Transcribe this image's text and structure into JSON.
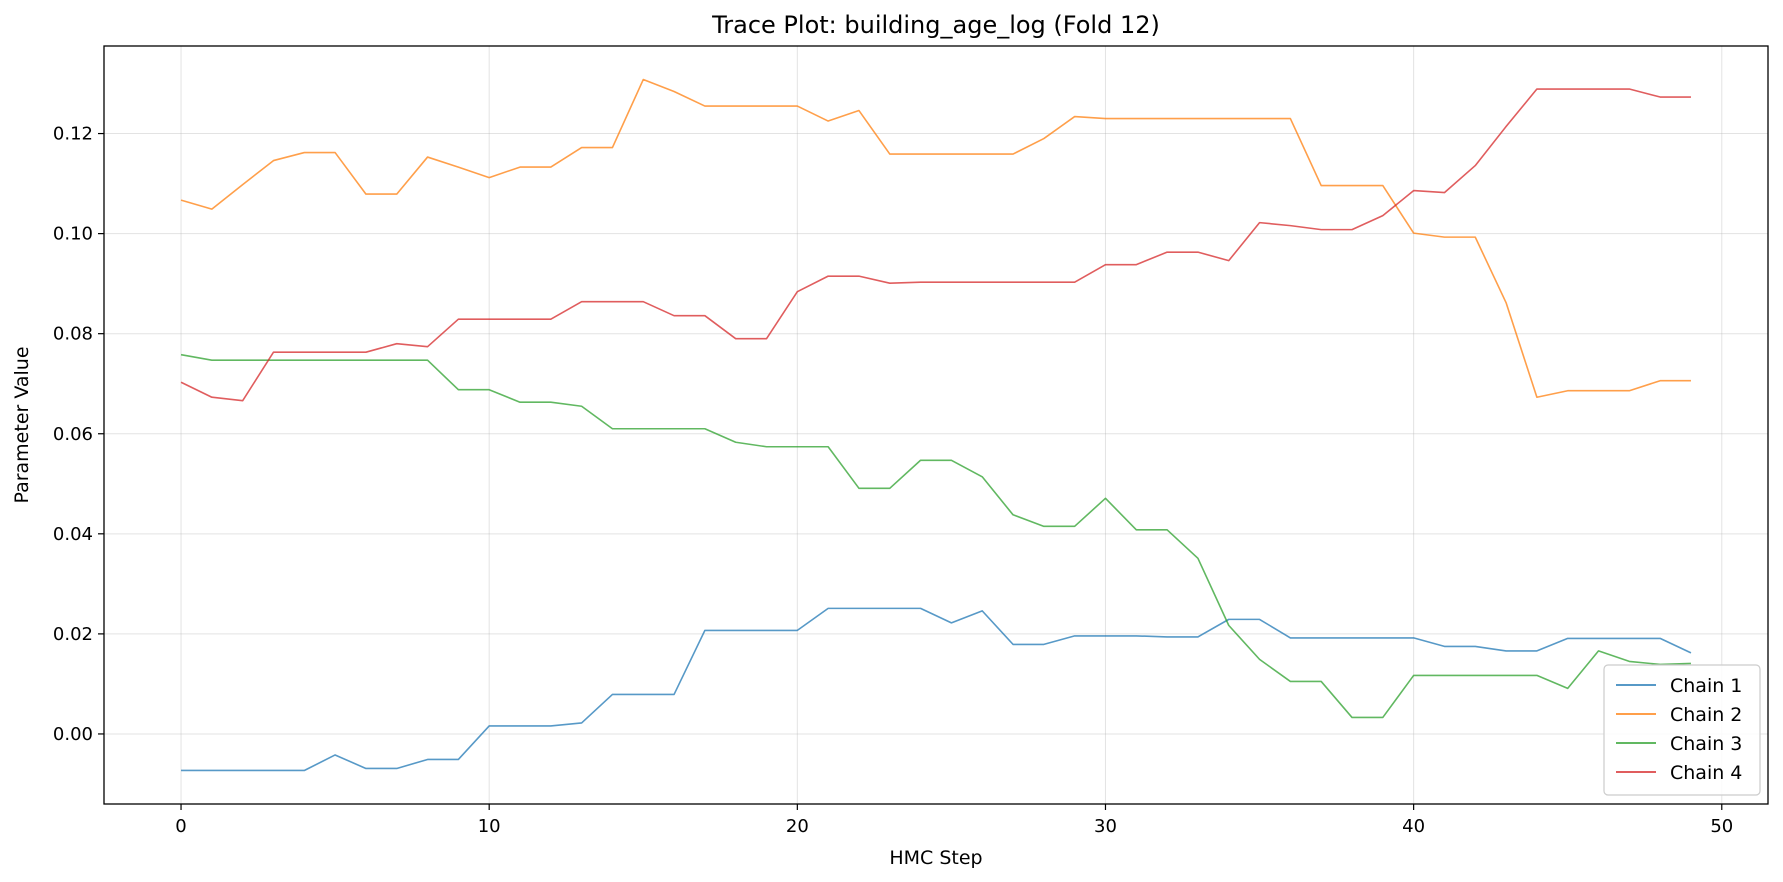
{
  "chart_data": {
    "type": "line",
    "title": "Trace Plot: building_age_log (Fold 12)",
    "xlabel": "HMC Step",
    "ylabel": "Parameter Value",
    "xlim": [
      -2.5,
      51.5
    ],
    "ylim": [
      -0.014,
      0.1375
    ],
    "xticks": [
      0,
      10,
      20,
      30,
      40,
      50
    ],
    "xtick_labels": [
      "0",
      "10",
      "20",
      "30",
      "40",
      "50"
    ],
    "yticks": [
      0.0,
      0.02,
      0.04,
      0.06,
      0.08,
      0.1,
      0.12
    ],
    "ytick_labels": [
      "0.00",
      "0.02",
      "0.04",
      "0.06",
      "0.08",
      "0.10",
      "0.12"
    ],
    "grid": true,
    "legend_position": "lower-right",
    "x": [
      0,
      1,
      2,
      3,
      4,
      5,
      6,
      7,
      8,
      9,
      10,
      11,
      12,
      13,
      14,
      15,
      16,
      17,
      18,
      19,
      20,
      21,
      22,
      23,
      24,
      25,
      26,
      27,
      28,
      29,
      30,
      31,
      32,
      33,
      34,
      35,
      36,
      37,
      38,
      39,
      40,
      41,
      42,
      43,
      44,
      45,
      46,
      47,
      48,
      49
    ],
    "series": [
      {
        "name": "Chain 1",
        "color": "#1f77b4",
        "values": [
          -0.0073,
          -0.0073,
          -0.0073,
          -0.0073,
          -0.0073,
          -0.0042,
          -0.0069,
          -0.0069,
          -0.0051,
          -0.0051,
          0.0016,
          0.0016,
          0.0016,
          0.0022,
          0.0079,
          0.0079,
          0.0079,
          0.0207,
          0.0207,
          0.0207,
          0.0207,
          0.0251,
          0.0251,
          0.0251,
          0.0251,
          0.0222,
          0.0246,
          0.0179,
          0.0179,
          0.0196,
          0.0196,
          0.0196,
          0.0194,
          0.0194,
          0.0229,
          0.0229,
          0.0192,
          0.0192,
          0.0192,
          0.0192,
          0.0192,
          0.0175,
          0.0175,
          0.0166,
          0.0166,
          0.0191,
          0.0191,
          0.0191,
          0.0191,
          0.0162
        ]
      },
      {
        "name": "Chain 2",
        "color": "#ff7f0e",
        "values": [
          0.1067,
          0.1049,
          0.1098,
          0.1146,
          0.1162,
          0.1162,
          0.1079,
          0.1079,
          0.1153,
          0.1133,
          0.1112,
          0.1133,
          0.1133,
          0.1172,
          0.1172,
          0.1308,
          0.1284,
          0.1255,
          0.1255,
          0.1255,
          0.1255,
          0.1225,
          0.1246,
          0.1159,
          0.1159,
          0.1159,
          0.1159,
          0.1159,
          0.119,
          0.1234,
          0.123,
          0.123,
          0.123,
          0.123,
          0.123,
          0.123,
          0.123,
          0.1096,
          0.1096,
          0.1096,
          0.1001,
          0.0993,
          0.0993,
          0.0862,
          0.0673,
          0.0686,
          0.0686,
          0.0686,
          0.0706,
          0.0706
        ]
      },
      {
        "name": "Chain 3",
        "color": "#2ca02c",
        "values": [
          0.0758,
          0.0747,
          0.0747,
          0.0747,
          0.0747,
          0.0747,
          0.0747,
          0.0747,
          0.0747,
          0.0688,
          0.0688,
          0.0663,
          0.0663,
          0.0655,
          0.061,
          0.061,
          0.061,
          0.061,
          0.0583,
          0.0574,
          0.0574,
          0.0574,
          0.0491,
          0.0491,
          0.0547,
          0.0547,
          0.0514,
          0.0438,
          0.0415,
          0.0415,
          0.0471,
          0.0408,
          0.0408,
          0.0351,
          0.0217,
          0.0149,
          0.0105,
          0.0105,
          0.0033,
          0.0033,
          0.0117,
          0.0117,
          0.0117,
          0.0117,
          0.0117,
          0.0091,
          0.0166,
          0.0145,
          0.0139,
          0.0141
        ]
      },
      {
        "name": "Chain 4",
        "color": "#d62728",
        "values": [
          0.0703,
          0.0673,
          0.0666,
          0.0763,
          0.0763,
          0.0763,
          0.0763,
          0.078,
          0.0774,
          0.0829,
          0.0829,
          0.0829,
          0.0829,
          0.0864,
          0.0864,
          0.0864,
          0.0836,
          0.0836,
          0.079,
          0.079,
          0.0884,
          0.0915,
          0.0915,
          0.0901,
          0.0903,
          0.0903,
          0.0903,
          0.0903,
          0.0903,
          0.0903,
          0.0938,
          0.0938,
          0.0963,
          0.0963,
          0.0946,
          0.1022,
          0.1016,
          0.1008,
          0.1008,
          0.1036,
          0.1086,
          0.1082,
          0.1136,
          0.1214,
          0.1289,
          0.1289,
          0.1289,
          0.1289,
          0.1273,
          0.1273
        ]
      }
    ]
  }
}
